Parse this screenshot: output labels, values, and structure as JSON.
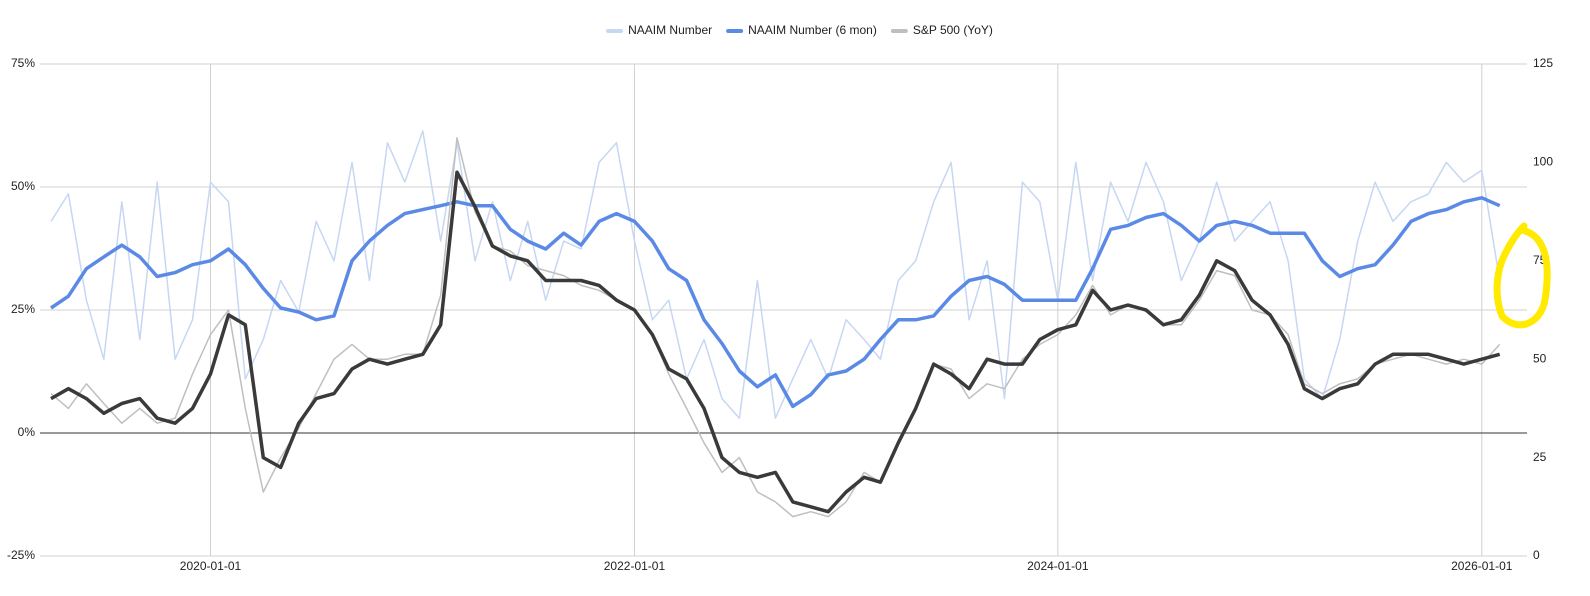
{
  "chart_data": {
    "type": "line",
    "legend": "top",
    "x": [
      "2019-04-01",
      "2019-05-01",
      "2019-06-01",
      "2019-07-01",
      "2019-08-01",
      "2019-09-01",
      "2019-10-01",
      "2019-11-01",
      "2019-12-01",
      "2020-01-01",
      "2020-02-01",
      "2020-03-01",
      "2020-04-01",
      "2020-05-01",
      "2020-06-01",
      "2020-07-01",
      "2020-08-01",
      "2020-09-01",
      "2020-10-01",
      "2020-11-01",
      "2020-12-01",
      "2021-01-01",
      "2021-02-01",
      "2021-03-01",
      "2021-04-01",
      "2021-05-01",
      "2021-06-01",
      "2021-07-01",
      "2021-08-01",
      "2021-09-01",
      "2021-10-01",
      "2021-11-01",
      "2021-12-01",
      "2022-01-01",
      "2022-02-01",
      "2022-03-01",
      "2022-04-01",
      "2022-05-01",
      "2022-06-01",
      "2022-07-01",
      "2022-08-01",
      "2022-09-01",
      "2022-10-01",
      "2022-11-01",
      "2022-12-01",
      "2023-01-01",
      "2023-02-01",
      "2023-03-01",
      "2023-04-01",
      "2023-05-01",
      "2023-06-01",
      "2023-07-01",
      "2023-08-01",
      "2023-09-01",
      "2023-10-01",
      "2023-11-01",
      "2023-12-01",
      "2024-01-01",
      "2024-02-01",
      "2024-03-01",
      "2024-04-01",
      "2024-05-01",
      "2024-06-01",
      "2024-07-01",
      "2024-08-01",
      "2024-09-01",
      "2024-10-01",
      "2024-11-01",
      "2024-12-01",
      "2025-01-01",
      "2025-02-01",
      "2025-03-01",
      "2025-04-01",
      "2025-05-01",
      "2025-06-01",
      "2025-07-01",
      "2025-08-01",
      "2025-09-01",
      "2025-10-01",
      "2025-11-01",
      "2025-12-01",
      "2026-01-01",
      "2026-02-01"
    ],
    "series": [
      {
        "name": "NAAIM Number",
        "color": "#c6d7f3",
        "axis": "y2",
        "width": 1.5,
        "values": [
          85,
          92,
          65,
          50,
          90,
          55,
          95,
          50,
          60,
          95,
          90,
          45,
          55,
          70,
          62,
          85,
          75,
          100,
          70,
          105,
          95,
          108,
          80,
          105,
          75,
          90,
          70,
          85,
          65,
          80,
          78,
          100,
          105,
          80,
          60,
          65,
          45,
          55,
          40,
          35,
          70,
          35,
          45,
          55,
          45,
          60,
          55,
          50,
          70,
          75,
          90,
          100,
          60,
          75,
          40,
          95,
          90,
          65,
          100,
          70,
          95,
          85,
          100,
          90,
          70,
          80,
          95,
          80,
          85,
          90,
          75,
          45,
          40,
          55,
          80,
          95,
          85,
          90,
          92,
          100,
          95,
          98,
          70
        ]
      },
      {
        "name": "NAAIM Number (6 mon)",
        "color": "#5b8ae6",
        "axis": "y2",
        "width": 3.5,
        "values": [
          63,
          66,
          73,
          76,
          79,
          76,
          71,
          72,
          74,
          75,
          78,
          74,
          68,
          63,
          62,
          60,
          61,
          75,
          80,
          84,
          87,
          88,
          89,
          90,
          89,
          89,
          83,
          80,
          78,
          82,
          79,
          85,
          87,
          85,
          80,
          73,
          70,
          60,
          54,
          47,
          43,
          46,
          38,
          41,
          46,
          47,
          50,
          55,
          60,
          60,
          61,
          66,
          70,
          71,
          69,
          65,
          65,
          65,
          65,
          73,
          83,
          84,
          86,
          87,
          84,
          80,
          84,
          85,
          84,
          82,
          82,
          82,
          75,
          71,
          73,
          74,
          79,
          85,
          87,
          88,
          90,
          91,
          89
        ]
      },
      {
        "name": "S&P 500 (YoY)",
        "color": "#bfbfbf",
        "width": 1.5,
        "values": [
          8,
          5,
          10,
          6,
          2,
          5,
          2,
          3,
          12,
          20,
          25,
          5,
          -12,
          -5,
          1,
          8,
          15,
          18,
          15,
          15,
          16,
          16,
          28,
          60,
          45,
          38,
          37,
          34,
          33,
          32,
          30,
          29,
          27,
          25,
          20,
          12,
          5,
          -2,
          -8,
          -5,
          -12,
          -14,
          -17,
          -16,
          -17,
          -14,
          -8,
          -10,
          -2,
          5,
          14,
          13,
          7,
          10,
          9,
          15,
          18,
          20,
          24,
          30,
          24,
          26,
          25,
          22,
          22,
          27,
          33,
          32,
          25,
          24,
          20,
          10,
          8,
          10,
          11,
          14,
          15,
          16,
          15,
          14,
          15,
          14,
          18
        ]
      },
      {
        "color": "#3a3a3a",
        "width": 3.5,
        "values": [
          7,
          9,
          7,
          4,
          6,
          7,
          3,
          2,
          5,
          12,
          24,
          22,
          -5,
          -7,
          2,
          7,
          8,
          13,
          15,
          14,
          15,
          16,
          22,
          53,
          46,
          38,
          36,
          35,
          31,
          31,
          31,
          30,
          27,
          25,
          20,
          13,
          11,
          5,
          -5,
          -8,
          -9,
          -8,
          -14,
          -15,
          -16,
          -12,
          -9,
          -10,
          -2,
          5,
          14,
          12,
          9,
          15,
          14,
          14,
          19,
          21,
          22,
          29,
          25,
          26,
          25,
          22,
          23,
          28,
          35,
          33,
          27,
          24,
          18,
          9,
          7,
          9,
          10,
          14,
          16,
          16,
          16,
          15,
          14,
          15,
          16
        ]
      }
    ],
    "xlim": [
      "2019-03-13",
      "2026-03-20"
    ],
    "xticks": [
      "2020-01-01",
      "2022-01-01",
      "2024-01-01",
      "2026-01-01"
    ],
    "ylim": [
      -25,
      75
    ],
    "yticks": [
      {
        "value": -25,
        "label": "-25%"
      },
      {
        "value": 0,
        "label": "0%"
      },
      {
        "value": 25,
        "label": "25%"
      },
      {
        "value": 50,
        "label": "50%"
      },
      {
        "value": 75,
        "label": "75%"
      }
    ],
    "y2lim": [
      0,
      125
    ],
    "y2ticks": [
      0,
      25,
      50,
      75,
      100,
      125
    ],
    "grid": true
  }
}
